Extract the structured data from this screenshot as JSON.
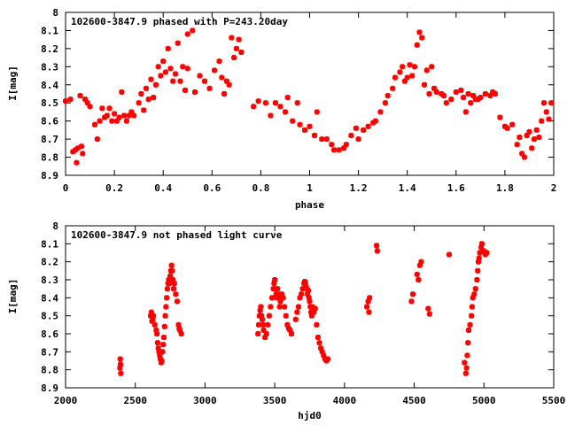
{
  "chart_data": [
    {
      "type": "scatter",
      "title": "102600-3847.9 phased with P=243.20day",
      "xlabel": "phase",
      "ylabel": "I[mag]",
      "xlim": [
        0,
        2
      ],
      "ylim": [
        8.9,
        8.0
      ],
      "y_inverted": true,
      "xticks": [
        "0",
        "0.2",
        "0.4",
        "0.6",
        "0.8",
        "1",
        "1.2",
        "1.4",
        "1.6",
        "1.8",
        "2"
      ],
      "yticks": [
        "8",
        "8.1",
        "8.2",
        "8.3",
        "8.4",
        "8.5",
        "8.6",
        "8.7",
        "8.8",
        "8.9"
      ],
      "marker_color": "#ff0000",
      "points": [
        [
          0.0,
          8.49
        ],
        [
          0.02,
          8.48
        ],
        [
          0.03,
          8.77
        ],
        [
          0.04,
          8.76
        ],
        [
          0.045,
          8.83
        ],
        [
          0.05,
          8.75
        ],
        [
          0.06,
          8.46
        ],
        [
          0.065,
          8.74
        ],
        [
          0.07,
          8.78
        ],
        [
          0.08,
          8.48
        ],
        [
          0.09,
          8.5
        ],
        [
          0.1,
          8.52
        ],
        [
          0.12,
          8.62
        ],
        [
          0.13,
          8.7
        ],
        [
          0.14,
          8.6
        ],
        [
          0.15,
          8.53
        ],
        [
          0.16,
          8.58
        ],
        [
          0.17,
          8.57
        ],
        [
          0.18,
          8.53
        ],
        [
          0.19,
          8.6
        ],
        [
          0.2,
          8.56
        ],
        [
          0.21,
          8.6
        ],
        [
          0.22,
          8.58
        ],
        [
          0.23,
          8.44
        ],
        [
          0.24,
          8.57
        ],
        [
          0.25,
          8.6
        ],
        [
          0.26,
          8.57
        ],
        [
          0.27,
          8.55
        ],
        [
          0.28,
          8.57
        ],
        [
          0.3,
          8.5
        ],
        [
          0.31,
          8.45
        ],
        [
          0.32,
          8.54
        ],
        [
          0.33,
          8.42
        ],
        [
          0.34,
          8.48
        ],
        [
          0.35,
          8.37
        ],
        [
          0.36,
          8.47
        ],
        [
          0.37,
          8.4
        ],
        [
          0.38,
          8.3
        ],
        [
          0.39,
          8.35
        ],
        [
          0.4,
          8.27
        ],
        [
          0.41,
          8.33
        ],
        [
          0.42,
          8.2
        ],
        [
          0.43,
          8.31
        ],
        [
          0.44,
          8.38
        ],
        [
          0.45,
          8.34
        ],
        [
          0.46,
          8.17
        ],
        [
          0.47,
          8.38
        ],
        [
          0.48,
          8.3
        ],
        [
          0.49,
          8.43
        ],
        [
          0.5,
          8.31
        ],
        [
          0.5,
          8.12
        ],
        [
          0.52,
          8.1
        ],
        [
          0.53,
          8.44
        ],
        [
          0.55,
          8.35
        ],
        [
          0.57,
          8.38
        ],
        [
          0.59,
          8.42
        ],
        [
          0.61,
          8.32
        ],
        [
          0.63,
          8.27
        ],
        [
          0.64,
          8.36
        ],
        [
          0.65,
          8.45
        ],
        [
          0.66,
          8.38
        ],
        [
          0.67,
          8.4
        ],
        [
          0.68,
          8.14
        ],
        [
          0.69,
          8.25
        ],
        [
          0.7,
          8.2
        ],
        [
          0.71,
          8.15
        ],
        [
          0.72,
          8.22
        ],
        [
          0.77,
          8.52
        ],
        [
          0.79,
          8.49
        ],
        [
          0.82,
          8.5
        ],
        [
          0.84,
          8.57
        ],
        [
          0.86,
          8.5
        ],
        [
          0.88,
          8.52
        ],
        [
          0.9,
          8.55
        ],
        [
          0.91,
          8.47
        ],
        [
          0.93,
          8.6
        ],
        [
          0.95,
          8.5
        ],
        [
          0.96,
          8.62
        ],
        [
          0.98,
          8.65
        ],
        [
          1.0,
          8.63
        ],
        [
          1.02,
          8.68
        ],
        [
          1.03,
          8.55
        ],
        [
          1.05,
          8.7
        ],
        [
          1.07,
          8.7
        ],
        [
          1.09,
          8.73
        ],
        [
          1.1,
          8.76
        ],
        [
          1.12,
          8.76
        ],
        [
          1.14,
          8.75
        ],
        [
          1.15,
          8.73
        ],
        [
          1.17,
          8.68
        ],
        [
          1.19,
          8.64
        ],
        [
          1.2,
          8.7
        ],
        [
          1.22,
          8.65
        ],
        [
          1.24,
          8.63
        ],
        [
          1.26,
          8.61
        ],
        [
          1.27,
          8.6
        ],
        [
          1.29,
          8.55
        ],
        [
          1.31,
          8.5
        ],
        [
          1.32,
          8.46
        ],
        [
          1.34,
          8.42
        ],
        [
          1.35,
          8.36
        ],
        [
          1.37,
          8.33
        ],
        [
          1.38,
          8.3
        ],
        [
          1.39,
          8.38
        ],
        [
          1.4,
          8.36
        ],
        [
          1.41,
          8.29
        ],
        [
          1.42,
          8.35
        ],
        [
          1.43,
          8.3
        ],
        [
          1.44,
          8.18
        ],
        [
          1.45,
          8.11
        ],
        [
          1.46,
          8.14
        ],
        [
          1.47,
          8.4
        ],
        [
          1.48,
          8.32
        ],
        [
          1.49,
          8.45
        ],
        [
          1.5,
          8.3
        ],
        [
          1.51,
          8.42
        ],
        [
          1.52,
          8.44
        ],
        [
          1.54,
          8.45
        ],
        [
          1.55,
          8.46
        ],
        [
          1.56,
          8.5
        ],
        [
          1.58,
          8.48
        ],
        [
          1.6,
          8.44
        ],
        [
          1.62,
          8.43
        ],
        [
          1.63,
          8.47
        ],
        [
          1.64,
          8.55
        ],
        [
          1.65,
          8.45
        ],
        [
          1.66,
          8.5
        ],
        [
          1.67,
          8.46
        ],
        [
          1.68,
          8.48
        ],
        [
          1.69,
          8.48
        ],
        [
          1.7,
          8.47
        ],
        [
          1.72,
          8.45
        ],
        [
          1.74,
          8.46
        ],
        [
          1.75,
          8.44
        ],
        [
          1.76,
          8.45
        ],
        [
          1.78,
          8.58
        ],
        [
          1.8,
          8.63
        ],
        [
          1.81,
          8.64
        ],
        [
          1.83,
          8.62
        ],
        [
          1.85,
          8.73
        ],
        [
          1.86,
          8.69
        ],
        [
          1.87,
          8.78
        ],
        [
          1.88,
          8.8
        ],
        [
          1.89,
          8.68
        ],
        [
          1.9,
          8.66
        ],
        [
          1.91,
          8.75
        ],
        [
          1.92,
          8.7
        ],
        [
          1.93,
          8.65
        ],
        [
          1.94,
          8.69
        ],
        [
          1.95,
          8.6
        ],
        [
          1.96,
          8.5
        ],
        [
          1.97,
          8.55
        ],
        [
          1.98,
          8.59
        ],
        [
          1.99,
          8.5
        ]
      ]
    },
    {
      "type": "scatter",
      "title": "102600-3847.9 not phased light curve",
      "xlabel": "hjd0",
      "ylabel": "I[mag]",
      "xlim": [
        2000,
        5500
      ],
      "ylim": [
        8.9,
        8.0
      ],
      "y_inverted": true,
      "xticks": [
        "2000",
        "2500",
        "3000",
        "3500",
        "4000",
        "4500",
        "5000",
        "5500"
      ],
      "yticks": [
        "8",
        "8.1",
        "8.2",
        "8.3",
        "8.4",
        "8.5",
        "8.6",
        "8.7",
        "8.8",
        "8.9"
      ],
      "marker_color": "#ff0000",
      "points": [
        [
          2390,
          8.79
        ],
        [
          2392,
          8.74
        ],
        [
          2394,
          8.77
        ],
        [
          2396,
          8.82
        ],
        [
          2610,
          8.5
        ],
        [
          2615,
          8.48
        ],
        [
          2620,
          8.53
        ],
        [
          2625,
          8.52
        ],
        [
          2630,
          8.5
        ],
        [
          2640,
          8.55
        ],
        [
          2650,
          8.58
        ],
        [
          2655,
          8.6
        ],
        [
          2660,
          8.65
        ],
        [
          2665,
          8.68
        ],
        [
          2670,
          8.7
        ],
        [
          2675,
          8.72
        ],
        [
          2680,
          8.74
        ],
        [
          2685,
          8.76
        ],
        [
          2690,
          8.75
        ],
        [
          2695,
          8.7
        ],
        [
          2700,
          8.66
        ],
        [
          2705,
          8.62
        ],
        [
          2710,
          8.56
        ],
        [
          2715,
          8.5
        ],
        [
          2720,
          8.45
        ],
        [
          2725,
          8.4
        ],
        [
          2730,
          8.35
        ],
        [
          2735,
          8.32
        ],
        [
          2740,
          8.3
        ],
        [
          2745,
          8.32
        ],
        [
          2750,
          8.28
        ],
        [
          2755,
          8.25
        ],
        [
          2760,
          8.22
        ],
        [
          2765,
          8.25
        ],
        [
          2770,
          8.3
        ],
        [
          2775,
          8.35
        ],
        [
          2780,
          8.32
        ],
        [
          2790,
          8.38
        ],
        [
          2800,
          8.42
        ],
        [
          2810,
          8.55
        ],
        [
          2815,
          8.57
        ],
        [
          2820,
          8.58
        ],
        [
          2830,
          8.6
        ],
        [
          3380,
          8.6
        ],
        [
          3385,
          8.55
        ],
        [
          3390,
          8.5
        ],
        [
          3395,
          8.47
        ],
        [
          3400,
          8.45
        ],
        [
          3405,
          8.5
        ],
        [
          3410,
          8.52
        ],
        [
          3415,
          8.55
        ],
        [
          3420,
          8.58
        ],
        [
          3430,
          8.62
        ],
        [
          3440,
          8.6
        ],
        [
          3450,
          8.55
        ],
        [
          3460,
          8.5
        ],
        [
          3470,
          8.45
        ],
        [
          3480,
          8.4
        ],
        [
          3490,
          8.35
        ],
        [
          3495,
          8.32
        ],
        [
          3500,
          8.3
        ],
        [
          3505,
          8.35
        ],
        [
          3510,
          8.38
        ],
        [
          3515,
          8.4
        ],
        [
          3520,
          8.35
        ],
        [
          3525,
          8.4
        ],
        [
          3530,
          8.38
        ],
        [
          3535,
          8.45
        ],
        [
          3540,
          8.42
        ],
        [
          3545,
          8.4
        ],
        [
          3550,
          8.38
        ],
        [
          3560,
          8.4
        ],
        [
          3570,
          8.45
        ],
        [
          3580,
          8.5
        ],
        [
          3590,
          8.55
        ],
        [
          3600,
          8.57
        ],
        [
          3610,
          8.58
        ],
        [
          3620,
          8.6
        ],
        [
          3650,
          8.52
        ],
        [
          3660,
          8.48
        ],
        [
          3670,
          8.45
        ],
        [
          3680,
          8.4
        ],
        [
          3690,
          8.38
        ],
        [
          3700,
          8.35
        ],
        [
          3710,
          8.32
        ],
        [
          3715,
          8.31
        ],
        [
          3720,
          8.32
        ],
        [
          3725,
          8.34
        ],
        [
          3730,
          8.35
        ],
        [
          3735,
          8.38
        ],
        [
          3740,
          8.36
        ],
        [
          3745,
          8.4
        ],
        [
          3750,
          8.42
        ],
        [
          3755,
          8.45
        ],
        [
          3760,
          8.48
        ],
        [
          3765,
          8.5
        ],
        [
          3770,
          8.45
        ],
        [
          3780,
          8.48
        ],
        [
          3790,
          8.46
        ],
        [
          3800,
          8.55
        ],
        [
          3810,
          8.62
        ],
        [
          3820,
          8.65
        ],
        [
          3830,
          8.68
        ],
        [
          3840,
          8.7
        ],
        [
          3850,
          8.72
        ],
        [
          3860,
          8.74
        ],
        [
          3870,
          8.75
        ],
        [
          3880,
          8.74
        ],
        [
          4160,
          8.45
        ],
        [
          4170,
          8.42
        ],
        [
          4175,
          8.48
        ],
        [
          4180,
          8.4
        ],
        [
          4230,
          8.11
        ],
        [
          4235,
          8.14
        ],
        [
          4480,
          8.42
        ],
        [
          4490,
          8.38
        ],
        [
          4520,
          8.27
        ],
        [
          4530,
          8.3
        ],
        [
          4540,
          8.22
        ],
        [
          4550,
          8.2
        ],
        [
          4600,
          8.46
        ],
        [
          4610,
          8.49
        ],
        [
          4750,
          8.16
        ],
        [
          4860,
          8.76
        ],
        [
          4870,
          8.82
        ],
        [
          4875,
          8.79
        ],
        [
          4880,
          8.72
        ],
        [
          4885,
          8.65
        ],
        [
          4890,
          8.58
        ],
        [
          4900,
          8.55
        ],
        [
          4910,
          8.5
        ],
        [
          4915,
          8.45
        ],
        [
          4920,
          8.4
        ],
        [
          4930,
          8.38
        ],
        [
          4940,
          8.35
        ],
        [
          4950,
          8.3
        ],
        [
          4955,
          8.25
        ],
        [
          4960,
          8.2
        ],
        [
          4965,
          8.18
        ],
        [
          4970,
          8.15
        ],
        [
          4980,
          8.12
        ],
        [
          4985,
          8.1
        ],
        [
          5000,
          8.14
        ],
        [
          5010,
          8.16
        ],
        [
          5020,
          8.15
        ]
      ]
    }
  ]
}
